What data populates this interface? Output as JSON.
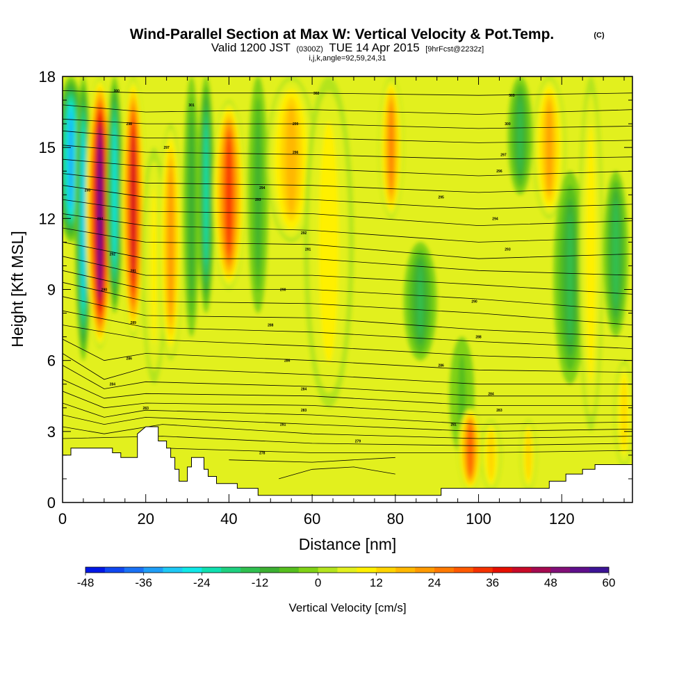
{
  "chart_data": {
    "type": "heatmap",
    "title": "Wind-Parallel Section at Max W: Vertical Velocity & Pot.Temp.",
    "title_mark": "(C)",
    "subtitle": {
      "valid": "Valid 1200 JST",
      "utc": "(0300Z)",
      "date": "TUE 14 Apr 2015",
      "fcst": "[9hrFcst@2232z]"
    },
    "info_line": "i,j,k,angle=92,59,24,31",
    "xlabel": "Distance [nm]",
    "ylabel": "Height [Kft MSL]",
    "xlim": [
      0,
      137
    ],
    "ylim": [
      0,
      18
    ],
    "x_ticks": [
      0,
      20,
      40,
      60,
      80,
      100,
      120
    ],
    "y_ticks": [
      0,
      3,
      6,
      9,
      12,
      15,
      18
    ],
    "x_tick_labels": [
      "0",
      "20",
      "40",
      "60",
      "80",
      "100",
      "120"
    ],
    "y_tick_labels": [
      "0",
      "3",
      "6",
      "9",
      "12",
      "15",
      "18"
    ],
    "colorbar": {
      "label": "Vertical Velocity [cm/s]",
      "min": -48,
      "max": 60,
      "step": 4,
      "tick_values": [
        -48,
        -36,
        -24,
        -12,
        0,
        12,
        24,
        36,
        48,
        60
      ],
      "tick_labels": [
        "-48",
        "-36",
        "-24",
        "-12",
        "0",
        "12",
        "24",
        "36",
        "48",
        "60"
      ],
      "colors": [
        "#0018e6",
        "#1047f0",
        "#1a72f5",
        "#1f9ef7",
        "#1fc8f5",
        "#10e8e8",
        "#10e0b0",
        "#1ed080",
        "#30c050",
        "#3cb032",
        "#56bf1e",
        "#80d216",
        "#b4e41e",
        "#e2f01e",
        "#fff000",
        "#ffd400",
        "#ffb800",
        "#ff9a00",
        "#ff7a00",
        "#ff5a00",
        "#f53200",
        "#e60f00",
        "#c80a28",
        "#a50a50",
        "#820f78",
        "#5f0f8c",
        "#3c1496"
      ]
    },
    "terrain_kft": [
      [
        0,
        2.0
      ],
      [
        2,
        2.0
      ],
      [
        2,
        2.3
      ],
      [
        12,
        2.3
      ],
      [
        12,
        2.1
      ],
      [
        14,
        2.1
      ],
      [
        14,
        1.9
      ],
      [
        18,
        1.9
      ],
      [
        18,
        2.9
      ],
      [
        20,
        3.2
      ],
      [
        23,
        3.2
      ],
      [
        23,
        2.6
      ],
      [
        25,
        2.6
      ],
      [
        25,
        2.3
      ],
      [
        26,
        2.3
      ],
      [
        26,
        1.9
      ],
      [
        27,
        1.9
      ],
      [
        27,
        1.4
      ],
      [
        28,
        1.4
      ],
      [
        28,
        0.9
      ],
      [
        30,
        0.9
      ],
      [
        30,
        1.5
      ],
      [
        31,
        1.5
      ],
      [
        31,
        1.9
      ],
      [
        34,
        1.9
      ],
      [
        34,
        1.4
      ],
      [
        35,
        1.4
      ],
      [
        35,
        1.1
      ],
      [
        37,
        1.1
      ],
      [
        37,
        0.8
      ],
      [
        42,
        0.8
      ],
      [
        42,
        0.6
      ],
      [
        47,
        0.6
      ],
      [
        47,
        0.3
      ],
      [
        88,
        0.3
      ],
      [
        88,
        0.3
      ],
      [
        91,
        0.3
      ],
      [
        91,
        0.6
      ],
      [
        117,
        0.6
      ],
      [
        117,
        0.9
      ],
      [
        121,
        0.9
      ],
      [
        121,
        1.2
      ],
      [
        125,
        1.2
      ],
      [
        125,
        1.4
      ],
      [
        128,
        1.4
      ],
      [
        128,
        1.6
      ],
      [
        137,
        1.6
      ]
    ],
    "w_columns": [
      {
        "x": 2,
        "w": -34,
        "z0": 11,
        "z1": 18,
        "width": 3.5
      },
      {
        "x": 5,
        "w": -30,
        "z0": 6,
        "z1": 18,
        "width": 2.0
      },
      {
        "x": 9,
        "w": 55,
        "z0": 6.5,
        "z1": 18,
        "width": 3.5
      },
      {
        "x": 12.5,
        "w": -26,
        "z0": 8,
        "z1": 18,
        "width": 2.0
      },
      {
        "x": 17,
        "w": 40,
        "z0": 7,
        "z1": 18,
        "width": 3.0
      },
      {
        "x": 22,
        "w": 8,
        "z0": 5,
        "z1": 15,
        "width": 3.0
      },
      {
        "x": 26,
        "w": 22,
        "z0": 6,
        "z1": 16,
        "width": 3.0
      },
      {
        "x": 31,
        "w": -12,
        "z0": 7,
        "z1": 18,
        "width": 2.0
      },
      {
        "x": 34.5,
        "w": -22,
        "z0": 8,
        "z1": 18,
        "width": 2.0
      },
      {
        "x": 40,
        "w": 34,
        "z0": 9,
        "z1": 17,
        "width": 4.0
      },
      {
        "x": 47,
        "w": -10,
        "z0": 8,
        "z1": 18,
        "width": 2.5
      },
      {
        "x": 55,
        "w": 18,
        "z0": 11,
        "z1": 18,
        "width": 6.0
      },
      {
        "x": 64,
        "w": 10,
        "z0": 4,
        "z1": 18,
        "width": 6.0
      },
      {
        "x": 79,
        "w": 24,
        "z0": 12,
        "z1": 18,
        "width": 3.0
      },
      {
        "x": 86,
        "w": -14,
        "z0": 6,
        "z1": 11,
        "width": 4.0
      },
      {
        "x": 96,
        "w": -6,
        "z0": 2,
        "z1": 7,
        "width": 3.0
      },
      {
        "x": 98,
        "w": 30,
        "z0": 0.5,
        "z1": 4,
        "width": 3.0
      },
      {
        "x": 103,
        "w": 14,
        "z0": 0.5,
        "z1": 3.5,
        "width": 2.5
      },
      {
        "x": 110,
        "w": -14,
        "z0": 13,
        "z1": 18,
        "width": 3.0
      },
      {
        "x": 112,
        "w": 14,
        "z0": 0.5,
        "z1": 3.5,
        "width": 2.0
      },
      {
        "x": 117,
        "w": 20,
        "z0": 12,
        "z1": 18,
        "width": 4.0
      },
      {
        "x": 122,
        "w": -14,
        "z0": 5,
        "z1": 14,
        "width": 4.0
      },
      {
        "x": 127,
        "w": 10,
        "z0": 3,
        "z1": 18,
        "width": 3.0
      },
      {
        "x": 133,
        "w": -16,
        "z0": 7,
        "z1": 14,
        "width": 3.0
      },
      {
        "x": 135,
        "w": 12,
        "z0": 1.5,
        "z1": 6,
        "width": 2.5
      }
    ],
    "isentropes_kft": [
      [
        [
          0,
          18.0
        ],
        [
          137,
          18.0
        ]
      ],
      [
        [
          0,
          17.4
        ],
        [
          20,
          17.3
        ],
        [
          60,
          17.3
        ],
        [
          100,
          17.2
        ],
        [
          137,
          17.3
        ]
      ],
      [
        [
          0,
          16.8
        ],
        [
          20,
          16.5
        ],
        [
          60,
          16.6
        ],
        [
          100,
          16.4
        ],
        [
          137,
          16.6
        ]
      ],
      [
        [
          0,
          16.2
        ],
        [
          20,
          16.0
        ],
        [
          60,
          16.0
        ],
        [
          100,
          15.8
        ],
        [
          137,
          15.9
        ]
      ],
      [
        [
          0,
          15.7
        ],
        [
          20,
          15.4
        ],
        [
          60,
          15.4
        ],
        [
          100,
          15.2
        ],
        [
          137,
          15.3
        ]
      ],
      [
        [
          0,
          15.1
        ],
        [
          20,
          14.8
        ],
        [
          60,
          14.7
        ],
        [
          100,
          14.5
        ],
        [
          137,
          14.6
        ]
      ],
      [
        [
          0,
          14.5
        ],
        [
          20,
          14.2
        ],
        [
          60,
          14.1
        ],
        [
          100,
          13.8
        ],
        [
          137,
          14.0
        ]
      ],
      [
        [
          0,
          13.9
        ],
        [
          20,
          13.5
        ],
        [
          60,
          13.4
        ],
        [
          100,
          13.1
        ],
        [
          137,
          13.3
        ]
      ],
      [
        [
          0,
          13.4
        ],
        [
          20,
          12.9
        ],
        [
          60,
          12.8
        ],
        [
          100,
          12.4
        ],
        [
          137,
          12.6
        ]
      ],
      [
        [
          0,
          12.8
        ],
        [
          20,
          12.3
        ],
        [
          60,
          12.2
        ],
        [
          100,
          11.7
        ],
        [
          137,
          11.9
        ]
      ],
      [
        [
          0,
          12.2
        ],
        [
          20,
          11.7
        ],
        [
          60,
          11.5
        ],
        [
          100,
          11.0
        ],
        [
          137,
          11.2
        ]
      ],
      [
        [
          0,
          11.6
        ],
        [
          20,
          11.0
        ],
        [
          60,
          10.9
        ],
        [
          100,
          10.3
        ],
        [
          137,
          10.5
        ]
      ],
      [
        [
          0,
          11.0
        ],
        [
          20,
          10.3
        ],
        [
          60,
          10.3
        ],
        [
          100,
          9.8
        ],
        [
          137,
          9.6
        ]
      ],
      [
        [
          0,
          10.4
        ],
        [
          20,
          9.6
        ],
        [
          60,
          9.6
        ],
        [
          100,
          9.2
        ],
        [
          137,
          8.8
        ]
      ],
      [
        [
          0,
          9.8
        ],
        [
          20,
          9.0
        ],
        [
          60,
          9.0
        ],
        [
          100,
          8.6
        ],
        [
          137,
          8.1
        ]
      ],
      [
        [
          0,
          9.3
        ],
        [
          20,
          8.5
        ],
        [
          60,
          8.4
        ],
        [
          100,
          8.0
        ],
        [
          137,
          7.5
        ]
      ],
      [
        [
          0,
          8.7
        ],
        [
          20,
          7.9
        ],
        [
          60,
          7.8
        ],
        [
          100,
          7.3
        ],
        [
          137,
          7.0
        ]
      ],
      [
        [
          0,
          8.1
        ],
        [
          20,
          7.4
        ],
        [
          60,
          7.2
        ],
        [
          100,
          6.8
        ],
        [
          137,
          6.5
        ]
      ],
      [
        [
          0,
          7.5
        ],
        [
          20,
          6.9
        ],
        [
          60,
          6.6
        ],
        [
          100,
          6.2
        ],
        [
          137,
          6.0
        ]
      ],
      [
        [
          0,
          6.9
        ],
        [
          10,
          6.0
        ],
        [
          20,
          6.3
        ],
        [
          60,
          6.0
        ],
        [
          100,
          5.6
        ],
        [
          137,
          5.5
        ]
      ],
      [
        [
          0,
          6.3
        ],
        [
          10,
          5.2
        ],
        [
          20,
          5.7
        ],
        [
          60,
          5.4
        ],
        [
          100,
          5.0
        ],
        [
          137,
          5.0
        ]
      ],
      [
        [
          0,
          5.8
        ],
        [
          10,
          4.8
        ],
        [
          20,
          5.1
        ],
        [
          60,
          4.9
        ],
        [
          100,
          4.5
        ],
        [
          137,
          4.5
        ]
      ],
      [
        [
          0,
          5.2
        ],
        [
          10,
          4.4
        ],
        [
          20,
          4.6
        ],
        [
          60,
          4.5
        ],
        [
          100,
          4.1
        ],
        [
          137,
          4.1
        ]
      ],
      [
        [
          0,
          4.7
        ],
        [
          10,
          4.0
        ],
        [
          20,
          4.2
        ],
        [
          60,
          4.1
        ],
        [
          100,
          3.7
        ],
        [
          137,
          3.7
        ]
      ],
      [
        [
          0,
          4.2
        ],
        [
          10,
          3.6
        ],
        [
          20,
          3.9
        ],
        [
          60,
          3.7
        ],
        [
          100,
          3.3
        ],
        [
          137,
          3.4
        ]
      ],
      [
        [
          0,
          3.7
        ],
        [
          10,
          3.3
        ],
        [
          20,
          3.6
        ],
        [
          60,
          3.3
        ],
        [
          100,
          3.0
        ],
        [
          137,
          3.1
        ]
      ],
      [
        [
          0,
          3.2
        ],
        [
          10,
          2.9
        ],
        [
          24,
          3.3
        ],
        [
          60,
          2.9
        ],
        [
          100,
          2.7
        ],
        [
          137,
          2.8
        ]
      ],
      [
        [
          0,
          2.7
        ],
        [
          24,
          2.8
        ],
        [
          60,
          2.5
        ],
        [
          100,
          2.4
        ],
        [
          137,
          2.5
        ]
      ],
      [
        [
          24,
          2.3
        ],
        [
          60,
          2.1
        ],
        [
          100,
          2.1
        ],
        [
          137,
          2.2
        ]
      ],
      [
        [
          40,
          1.8
        ],
        [
          60,
          1.7
        ],
        [
          80,
          1.9
        ]
      ],
      [
        [
          52,
          1.0
        ],
        [
          60,
          1.4
        ],
        [
          70,
          1.5
        ],
        [
          80,
          1.2
        ]
      ]
    ],
    "isentrope_labels": [
      {
        "x": 13,
        "z": 17.4,
        "text": "300"
      },
      {
        "x": 31,
        "z": 16.8,
        "text": "301"
      },
      {
        "x": 61,
        "z": 17.3,
        "text": "302"
      },
      {
        "x": 108,
        "z": 17.2,
        "text": "303"
      },
      {
        "x": 16,
        "z": 16.0,
        "text": "298"
      },
      {
        "x": 25,
        "z": 15.0,
        "text": "297"
      },
      {
        "x": 56,
        "z": 16.0,
        "text": "299"
      },
      {
        "x": 107,
        "z": 16.0,
        "text": "300"
      },
      {
        "x": 56,
        "z": 14.8,
        "text": "296"
      },
      {
        "x": 106,
        "z": 14.7,
        "text": "297"
      },
      {
        "x": 6,
        "z": 13.2,
        "text": "295"
      },
      {
        "x": 48,
        "z": 13.3,
        "text": "294"
      },
      {
        "x": 105,
        "z": 14.0,
        "text": "296"
      },
      {
        "x": 91,
        "z": 12.9,
        "text": "295"
      },
      {
        "x": 47,
        "z": 12.8,
        "text": "293"
      },
      {
        "x": 9,
        "z": 12.0,
        "text": "294"
      },
      {
        "x": 58,
        "z": 11.4,
        "text": "292"
      },
      {
        "x": 104,
        "z": 12.0,
        "text": "294"
      },
      {
        "x": 12,
        "z": 10.5,
        "text": "292"
      },
      {
        "x": 59,
        "z": 10.7,
        "text": "291"
      },
      {
        "x": 107,
        "z": 10.7,
        "text": "293"
      },
      {
        "x": 17,
        "z": 9.8,
        "text": "291"
      },
      {
        "x": 53,
        "z": 9.0,
        "text": "290"
      },
      {
        "x": 99,
        "z": 8.5,
        "text": "290"
      },
      {
        "x": 10,
        "z": 9.0,
        "text": "290"
      },
      {
        "x": 17,
        "z": 7.6,
        "text": "289"
      },
      {
        "x": 50,
        "z": 7.5,
        "text": "288"
      },
      {
        "x": 100,
        "z": 7.0,
        "text": "288"
      },
      {
        "x": 16,
        "z": 6.1,
        "text": "286"
      },
      {
        "x": 54,
        "z": 6.0,
        "text": "286"
      },
      {
        "x": 91,
        "z": 5.8,
        "text": "286"
      },
      {
        "x": 12,
        "z": 5.0,
        "text": "284"
      },
      {
        "x": 58,
        "z": 4.8,
        "text": "284"
      },
      {
        "x": 103,
        "z": 4.6,
        "text": "284"
      },
      {
        "x": 20,
        "z": 4.0,
        "text": "283"
      },
      {
        "x": 58,
        "z": 3.9,
        "text": "283"
      },
      {
        "x": 105,
        "z": 3.9,
        "text": "283"
      },
      {
        "x": 53,
        "z": 3.3,
        "text": "281"
      },
      {
        "x": 94,
        "z": 3.3,
        "text": "281"
      },
      {
        "x": 71,
        "z": 2.6,
        "text": "279"
      },
      {
        "x": 48,
        "z": 2.1,
        "text": "278"
      }
    ]
  }
}
